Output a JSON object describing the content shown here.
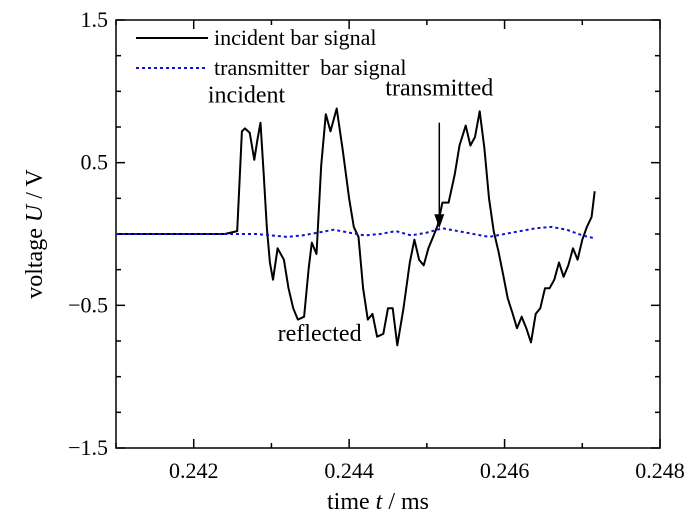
{
  "chart_data": {
    "type": "line",
    "xlabel_prefix": "time",
    "xlabel_var": "t",
    "xlabel_unit": "/ ms",
    "ylabel_prefix": "voltage",
    "ylabel_var": "U",
    "ylabel_unit": "/ V",
    "xlim": [
      0.241,
      0.248
    ],
    "ylim": [
      -1.5,
      1.5
    ],
    "x_ticks": [
      0.242,
      0.244,
      0.246,
      0.248
    ],
    "x_tick_labels": [
      "0.242",
      "0.244",
      "0.246",
      "0.248"
    ],
    "y_ticks": [
      -1.5,
      -0.5,
      0.5,
      1.5
    ],
    "y_tick_labels": [
      "−1.5",
      "−0.5",
      "0.5",
      "1.5"
    ],
    "grid": false,
    "legend_position": "top-left",
    "series": [
      {
        "name": "incident bar signal",
        "color": "#000000",
        "style": "solid",
        "x": [
          0.241,
          0.2424,
          0.24256,
          0.24262,
          0.24266,
          0.24272,
          0.24278,
          0.24282,
          0.24286,
          0.2429,
          0.24294,
          0.24298,
          0.24302,
          0.24308,
          0.24316,
          0.24322,
          0.24328,
          0.24334,
          0.24342,
          0.24348,
          0.24352,
          0.24358,
          0.24364,
          0.2437,
          0.24376,
          0.24384,
          0.24392,
          0.244,
          0.24406,
          0.24412,
          0.24418,
          0.24424,
          0.2443,
          0.24436,
          0.24444,
          0.2445,
          0.24456,
          0.24462,
          0.2447,
          0.24478,
          0.24484,
          0.2449,
          0.24496,
          0.24502,
          0.24508,
          0.24514,
          0.2452,
          0.24528,
          0.24536,
          0.24542,
          0.2455,
          0.24556,
          0.24562,
          0.24568,
          0.24574,
          0.2458,
          0.24586,
          0.24592,
          0.24598,
          0.24604,
          0.2461,
          0.24616,
          0.24622,
          0.24628,
          0.24634,
          0.2464,
          0.24646,
          0.24652,
          0.24658,
          0.24664,
          0.2467,
          0.24676,
          0.24682,
          0.24688,
          0.24694,
          0.247,
          0.24706,
          0.24712,
          0.24716
        ],
        "y": [
          0.0,
          0.0,
          0.02,
          0.72,
          0.74,
          0.71,
          0.52,
          0.66,
          0.78,
          0.42,
          0.05,
          -0.2,
          -0.32,
          -0.1,
          -0.18,
          -0.38,
          -0.52,
          -0.6,
          -0.58,
          -0.24,
          -0.06,
          -0.14,
          0.48,
          0.84,
          0.72,
          0.88,
          0.58,
          0.25,
          0.05,
          -0.02,
          -0.38,
          -0.6,
          -0.56,
          -0.72,
          -0.7,
          -0.52,
          -0.52,
          -0.78,
          -0.52,
          -0.2,
          -0.04,
          -0.18,
          -0.22,
          -0.1,
          -0.02,
          0.06,
          0.22,
          0.22,
          0.42,
          0.62,
          0.76,
          0.62,
          0.68,
          0.86,
          0.6,
          0.25,
          0.02,
          -0.12,
          -0.28,
          -0.45,
          -0.55,
          -0.66,
          -0.58,
          -0.66,
          -0.76,
          -0.56,
          -0.52,
          -0.38,
          -0.38,
          -0.32,
          -0.2,
          -0.3,
          -0.22,
          -0.1,
          -0.18,
          -0.04,
          0.05,
          0.12,
          0.3
        ]
      },
      {
        "name": "transmitter  bar signal",
        "color": "#1010d0",
        "style": "dotted",
        "x": [
          0.241,
          0.2424,
          0.2426,
          0.2428,
          0.243,
          0.2432,
          0.2434,
          0.2436,
          0.2438,
          0.244,
          0.2442,
          0.2444,
          0.2446,
          0.2448,
          0.245,
          0.2452,
          0.2454,
          0.2456,
          0.2458,
          0.246,
          0.2462,
          0.2464,
          0.2466,
          0.2468,
          0.247,
          0.24716
        ],
        "y": [
          0.0,
          0.0,
          0.0,
          0.0,
          -0.01,
          -0.02,
          -0.01,
          0.01,
          0.03,
          0.01,
          -0.01,
          0.0,
          0.02,
          -0.01,
          0.01,
          0.04,
          0.02,
          0.0,
          -0.02,
          0.0,
          0.02,
          0.04,
          0.05,
          0.03,
          -0.01,
          -0.03
        ]
      }
    ],
    "annotations": [
      {
        "text": "incident",
        "x": 0.24268,
        "y": 0.92
      },
      {
        "text": "transmitted",
        "x": 0.24516,
        "y": 0.97
      },
      {
        "text": "reflected",
        "x": 0.24362,
        "y": -0.75
      }
    ],
    "arrow": {
      "from": [
        0.24516,
        0.78
      ],
      "to": [
        0.24516,
        0.04
      ]
    }
  }
}
